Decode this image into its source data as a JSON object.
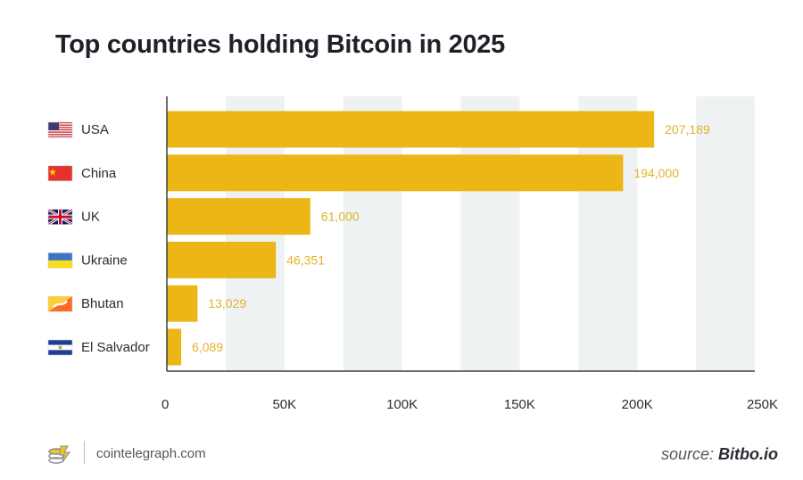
{
  "chart_data": {
    "type": "bar",
    "orientation": "horizontal",
    "title": "Top countries holding Bitcoin in 2025",
    "categories": [
      "USA",
      "China",
      "UK",
      "Ukraine",
      "Bhutan",
      "El Salvador"
    ],
    "values": [
      207189,
      194000,
      61000,
      46351,
      13029,
      6089
    ],
    "value_labels": [
      "207,189",
      "194,000",
      "61,000",
      "46,351",
      "13,029",
      "6,089"
    ],
    "xlim": [
      0,
      250000
    ],
    "xticks": [
      0,
      50000,
      100000,
      150000,
      200000,
      250000
    ],
    "xtick_labels": [
      "0",
      "50K",
      "100K",
      "150K",
      "200K",
      "250K"
    ],
    "xlabel": "",
    "ylabel": "",
    "bar_color": "#ecb617",
    "label_color": "#e3b22a",
    "band_color": "#eef2f3"
  },
  "footer": {
    "site": "cointelegraph.com",
    "source_label": "source:",
    "source_name": "Bitbo.io"
  }
}
